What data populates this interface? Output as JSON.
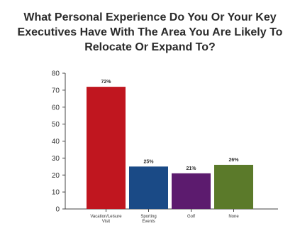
{
  "chart_data": {
    "type": "bar",
    "title": "What Personal Experience Do You Or Your Key Executives Have With The Area You Are Likely To Relocate Or Expand To?",
    "categories": [
      "Vacation/Leisure Visit",
      "Sporting Events",
      "Golf",
      "None"
    ],
    "values": [
      72,
      25,
      21,
      26
    ],
    "data_labels": [
      "72%",
      "25%",
      "21%",
      "26%"
    ],
    "colors": [
      "#c0161f",
      "#1a4a86",
      "#5c1b6e",
      "#5b7a2a"
    ],
    "ylim": [
      0,
      80
    ],
    "yticks": [
      0,
      10,
      20,
      30,
      40,
      50,
      60,
      70,
      80
    ],
    "xlabel": "",
    "ylabel": "",
    "grid": false
  }
}
